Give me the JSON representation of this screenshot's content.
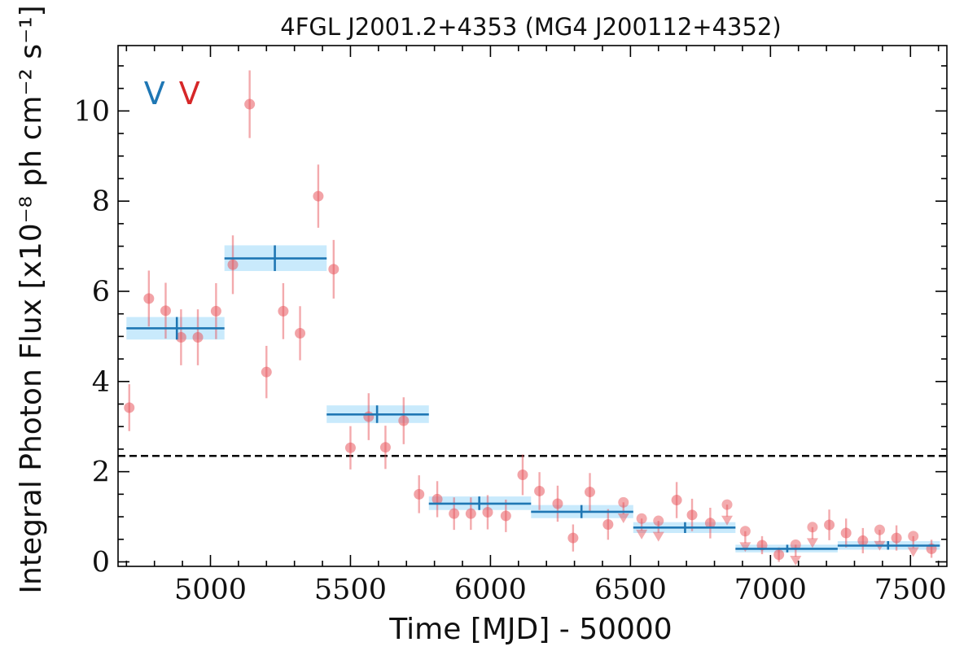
{
  "chart_data": {
    "type": "scatter",
    "title": "4FGL J2001.2+4353 (MG4 J200112+4352)",
    "xlabel": "Time [MJD] - 50000",
    "ylabel": "Integral Photon Flux [x10⁻⁸ ph cm⁻² s⁻¹]",
    "xlim": [
      4670,
      7630
    ],
    "ylim": [
      -0.1,
      11.45
    ],
    "xticks": [
      5000,
      5500,
      6000,
      6500,
      7000,
      7500
    ],
    "yticks": [
      0,
      2,
      4,
      6,
      8,
      10
    ],
    "tick_labels_x": [
      "5000",
      "5500",
      "6000",
      "6500",
      "7000",
      "7500"
    ],
    "tick_labels_y": [
      "0",
      "2",
      "4",
      "6",
      "8",
      "10"
    ],
    "grid": false,
    "markers": [
      {
        "label": "V",
        "color": "#1f77b4",
        "x": 4800,
        "y": 10.4
      },
      {
        "label": "V",
        "color": "#d62728",
        "x": 4925,
        "y": 10.4
      }
    ],
    "threshold_line": {
      "y": 2.35,
      "style": "dashed",
      "color": "#000000"
    },
    "series": [
      {
        "kind": "binned",
        "color": "#1f77b4",
        "band_color": "#bfe6fb",
        "bins": [
          {
            "x0": 4700,
            "x1": 5050,
            "xc": 4880,
            "y": 5.18,
            "band": [
              4.93,
              5.43
            ]
          },
          {
            "x0": 5050,
            "x1": 5415,
            "xc": 5230,
            "y": 6.73,
            "band": [
              6.45,
              7.02
            ]
          },
          {
            "x0": 5415,
            "x1": 5780,
            "xc": 5595,
            "y": 3.27,
            "band": [
              3.08,
              3.47
            ]
          },
          {
            "x0": 5780,
            "x1": 6145,
            "xc": 5960,
            "y": 1.29,
            "band": [
              1.15,
              1.45
            ]
          },
          {
            "x0": 6145,
            "x1": 6510,
            "xc": 6325,
            "y": 1.11,
            "band": [
              0.97,
              1.26
            ]
          },
          {
            "x0": 6510,
            "x1": 6875,
            "xc": 6695,
            "y": 0.76,
            "band": [
              0.64,
              0.88
            ]
          },
          {
            "x0": 6875,
            "x1": 7240,
            "xc": 7060,
            "y": 0.29,
            "band": [
              0.21,
              0.38
            ]
          },
          {
            "x0": 7240,
            "x1": 7605,
            "xc": 7420,
            "y": 0.36,
            "band": [
              0.27,
              0.46
            ]
          }
        ]
      },
      {
        "kind": "points",
        "color": "#e8575e",
        "points": [
          {
            "x": 4710,
            "y": 3.42,
            "err": 0.52
          },
          {
            "x": 4780,
            "y": 5.84,
            "err": 0.62
          },
          {
            "x": 4840,
            "y": 5.57,
            "err": 0.62
          },
          {
            "x": 4895,
            "y": 4.98,
            "err": 0.62
          },
          {
            "x": 4955,
            "y": 4.98,
            "err": 0.62
          },
          {
            "x": 5020,
            "y": 5.56,
            "err": 0.62
          },
          {
            "x": 5080,
            "y": 6.59,
            "err": 0.65
          },
          {
            "x": 5140,
            "y": 10.15,
            "err": 0.75
          },
          {
            "x": 5200,
            "y": 4.21,
            "err": 0.58
          },
          {
            "x": 5260,
            "y": 5.56,
            "err": 0.62
          },
          {
            "x": 5320,
            "y": 5.07,
            "err": 0.6
          },
          {
            "x": 5385,
            "y": 8.11,
            "err": 0.7
          },
          {
            "x": 5440,
            "y": 6.49,
            "err": 0.65
          },
          {
            "x": 5500,
            "y": 2.53,
            "err": 0.48
          },
          {
            "x": 5565,
            "y": 3.22,
            "err": 0.52
          },
          {
            "x": 5625,
            "y": 2.54,
            "err": 0.48
          },
          {
            "x": 5690,
            "y": 3.13,
            "err": 0.52
          },
          {
            "x": 5745,
            "y": 1.5,
            "err": 0.42
          },
          {
            "x": 5810,
            "y": 1.39,
            "err": 0.4
          },
          {
            "x": 5870,
            "y": 1.07,
            "err": 0.36
          },
          {
            "x": 5930,
            "y": 1.07,
            "err": 0.36
          },
          {
            "x": 5990,
            "y": 1.1,
            "err": 0.38
          },
          {
            "x": 6055,
            "y": 1.02,
            "err": 0.36
          },
          {
            "x": 6115,
            "y": 1.93,
            "err": 0.45
          },
          {
            "x": 6175,
            "y": 1.57,
            "err": 0.42
          },
          {
            "x": 6240,
            "y": 1.29,
            "err": 0.4
          },
          {
            "x": 6295,
            "y": 0.53,
            "err": 0.3
          },
          {
            "x": 6355,
            "y": 1.55,
            "err": 0.42
          },
          {
            "x": 6420,
            "y": 0.83,
            "err": 0.34
          },
          {
            "x": 6475,
            "y": 1.32,
            "err": 0.3,
            "upper_limit": true
          },
          {
            "x": 6540,
            "y": 0.96,
            "err": 0.3,
            "upper_limit": true
          },
          {
            "x": 6600,
            "y": 0.91,
            "err": 0.3,
            "upper_limit": true
          },
          {
            "x": 6665,
            "y": 1.37,
            "err": 0.4
          },
          {
            "x": 6720,
            "y": 1.04,
            "err": 0.36
          },
          {
            "x": 6785,
            "y": 0.86,
            "err": 0.34
          },
          {
            "x": 6845,
            "y": 1.27,
            "err": 0.3,
            "upper_limit": true
          },
          {
            "x": 6910,
            "y": 0.68,
            "err": 0.3,
            "upper_limit": true
          },
          {
            "x": 6970,
            "y": 0.37,
            "err": 0.2
          },
          {
            "x": 7030,
            "y": 0.16,
            "err": 0.16
          },
          {
            "x": 7090,
            "y": 0.38,
            "err": 0.3,
            "upper_limit": true
          },
          {
            "x": 7150,
            "y": 0.77,
            "err": 0.3,
            "upper_limit": true
          },
          {
            "x": 7210,
            "y": 0.82,
            "err": 0.34
          },
          {
            "x": 7270,
            "y": 0.64,
            "err": 0.32
          },
          {
            "x": 7330,
            "y": 0.47,
            "err": 0.28
          },
          {
            "x": 7390,
            "y": 0.71,
            "err": 0.3,
            "upper_limit": true
          },
          {
            "x": 7450,
            "y": 0.53,
            "err": 0.28
          },
          {
            "x": 7510,
            "y": 0.57,
            "err": 0.3,
            "upper_limit": true
          },
          {
            "x": 7575,
            "y": 0.29,
            "err": 0.2
          }
        ]
      }
    ]
  }
}
